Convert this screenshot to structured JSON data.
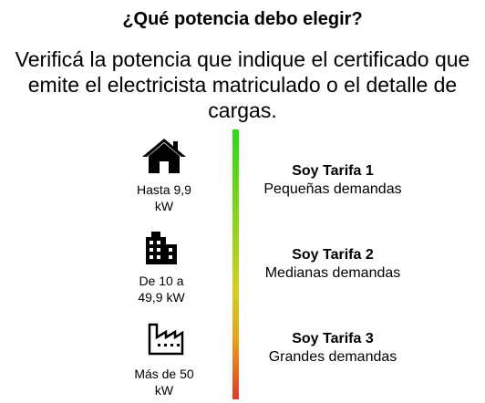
{
  "heading": "¿Qué potencia debo elegir?",
  "intro": {
    "line1": "Verificá la potencia que indique el certificado que",
    "line2": "emite el electricista matriculado o el detalle de",
    "line3": "cargas."
  },
  "tiers": [
    {
      "icon": "house-icon",
      "range_line1": "Hasta 9,9",
      "range_line2": "kW",
      "name": "Soy Tarifa 1",
      "description": "Pequeñas demandas"
    },
    {
      "icon": "building-icon",
      "range_line1": "De 10 a",
      "range_line2": "49,9 kW",
      "name": "Soy Tarifa 2",
      "description": "Medianas demandas"
    },
    {
      "icon": "factory-icon",
      "range_line1": "Más de 50",
      "range_line2": "kW",
      "name": "Soy Tarifa 3",
      "description": "Grandes demandas"
    }
  ],
  "colors": {
    "bar_top": "#2fd51e",
    "bar_middle": "#d4cf20",
    "bar_bottom": "#e03a26",
    "text": "#000000"
  }
}
